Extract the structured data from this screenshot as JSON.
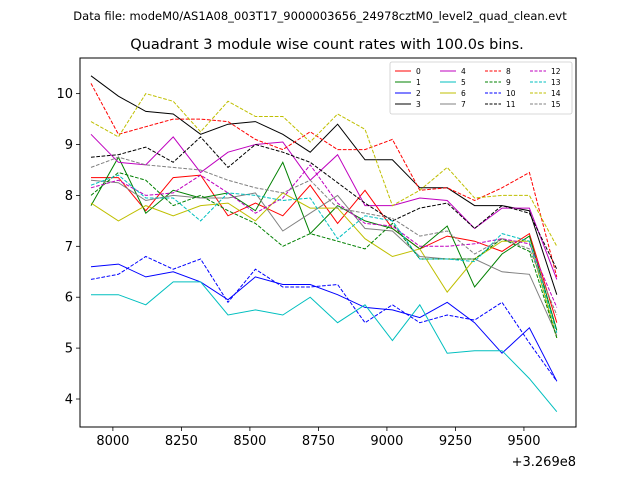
{
  "chart_data": {
    "type": "line",
    "suptitle": "Data file: modeM0/AS1A08_003T17_9000003656_24978cztM0_level2_quad_clean.evt",
    "title": "Quadrant 3 module wise count rates with 100.0s bins.",
    "xlabel": "",
    "ylabel": "",
    "x_offset_label": "+3.269e8",
    "xlim": [
      7880,
      9690
    ],
    "ylim": [
      3.45,
      10.7
    ],
    "xticks": [
      8000,
      8250,
      8500,
      8750,
      9000,
      9250,
      9500
    ],
    "yticks": [
      4,
      5,
      6,
      7,
      8,
      9,
      10
    ],
    "legend_position": "top-right",
    "legend_columns": 4,
    "x": [
      7920,
      8020,
      8120,
      8220,
      8320,
      8420,
      8520,
      8620,
      8720,
      8820,
      8920,
      9020,
      9120,
      9220,
      9320,
      9420,
      9520,
      9620
    ],
    "series": [
      {
        "name": "0",
        "color": "#ff0000",
        "dash": "solid",
        "values": [
          8.35,
          8.35,
          7.7,
          8.35,
          8.4,
          7.6,
          7.85,
          7.6,
          8.2,
          7.45,
          8.1,
          7.35,
          6.95,
          7.2,
          7.1,
          6.9,
          7.25,
          5.5
        ]
      },
      {
        "name": "1",
        "color": "#008000",
        "dash": "solid",
        "values": [
          7.8,
          8.75,
          7.65,
          8.1,
          7.95,
          8.05,
          7.7,
          8.65,
          7.25,
          7.8,
          7.5,
          7.35,
          6.95,
          7.4,
          6.2,
          6.85,
          7.2,
          5.35
        ]
      },
      {
        "name": "2",
        "color": "#0000ff",
        "dash": "solid",
        "values": [
          6.6,
          6.65,
          6.4,
          6.5,
          6.3,
          5.95,
          6.4,
          6.25,
          6.25,
          6.05,
          5.8,
          5.75,
          5.6,
          5.9,
          5.5,
          4.9,
          5.4,
          4.35
        ]
      },
      {
        "name": "3",
        "color": "#000000",
        "dash": "solid",
        "values": [
          10.35,
          9.95,
          9.65,
          9.6,
          9.2,
          9.4,
          9.45,
          9.2,
          8.85,
          9.4,
          8.7,
          8.7,
          8.15,
          8.15,
          7.8,
          7.8,
          7.7,
          6.05
        ]
      },
      {
        "name": "4",
        "color": "#bf00bf",
        "dash": "solid",
        "values": [
          9.2,
          8.65,
          8.6,
          9.15,
          8.45,
          8.85,
          9.0,
          9.05,
          8.3,
          8.8,
          7.8,
          7.8,
          7.95,
          7.9,
          7.35,
          7.75,
          7.75,
          6.35
        ]
      },
      {
        "name": "5",
        "color": "#00bfbf",
        "dash": "solid",
        "values": [
          6.05,
          6.05,
          5.85,
          6.3,
          6.3,
          5.65,
          5.75,
          5.65,
          6.0,
          5.5,
          5.85,
          5.15,
          5.85,
          4.9,
          4.95,
          4.95,
          4.4,
          3.75
        ]
      },
      {
        "name": "6",
        "color": "#bfbf00",
        "dash": "solid",
        "values": [
          7.85,
          7.5,
          7.8,
          7.6,
          7.8,
          7.85,
          7.5,
          8.05,
          7.75,
          7.75,
          7.15,
          6.8,
          6.95,
          6.1,
          6.75,
          7.1,
          7.1,
          5.2
        ]
      },
      {
        "name": "7",
        "color": "#808080",
        "dash": "solid",
        "values": [
          8.3,
          8.25,
          7.9,
          8.0,
          7.95,
          7.95,
          8.05,
          7.3,
          7.65,
          8.0,
          7.35,
          7.3,
          6.8,
          6.75,
          6.75,
          6.5,
          6.45,
          5.25
        ]
      },
      {
        "name": "8",
        "color": "#ff0000",
        "dash": "dashed",
        "values": [
          10.2,
          9.2,
          9.35,
          9.5,
          9.5,
          9.45,
          9.1,
          8.9,
          9.25,
          8.9,
          8.9,
          9.1,
          8.1,
          8.15,
          7.9,
          8.15,
          8.45,
          6.4
        ]
      },
      {
        "name": "9",
        "color": "#008000",
        "dash": "dashed",
        "values": [
          8.0,
          8.45,
          8.3,
          7.8,
          8.0,
          7.7,
          7.45,
          7.0,
          7.25,
          7.1,
          6.95,
          7.45,
          6.75,
          6.75,
          6.75,
          7.15,
          6.9,
          5.2
        ]
      },
      {
        "name": "10",
        "color": "#0000ff",
        "dash": "dashed",
        "values": [
          6.35,
          6.45,
          6.8,
          6.55,
          6.75,
          5.9,
          6.55,
          6.2,
          6.2,
          6.25,
          5.5,
          5.85,
          5.5,
          5.65,
          5.55,
          5.9,
          5.1,
          4.35
        ]
      },
      {
        "name": "11",
        "color": "#000000",
        "dash": "dashed",
        "values": [
          8.75,
          8.8,
          8.95,
          8.65,
          9.15,
          8.55,
          9.0,
          8.85,
          8.65,
          8.25,
          7.85,
          7.5,
          7.75,
          7.85,
          7.35,
          7.8,
          7.65,
          6.55
        ]
      },
      {
        "name": "12",
        "color": "#bf00bf",
        "dash": "dashed",
        "values": [
          8.15,
          8.3,
          8.0,
          8.05,
          8.4,
          8.05,
          7.65,
          7.95,
          8.6,
          7.85,
          7.45,
          7.4,
          7.0,
          7.0,
          7.05,
          7.15,
          7.05,
          5.8
        ]
      },
      {
        "name": "13",
        "color": "#00bfbf",
        "dash": "dashed",
        "values": [
          8.2,
          8.4,
          7.95,
          7.95,
          7.5,
          8.05,
          8.0,
          7.9,
          7.95,
          7.15,
          7.6,
          7.5,
          6.75,
          6.75,
          6.7,
          7.25,
          7.1,
          5.3
        ]
      },
      {
        "name": "14",
        "color": "#bfbf00",
        "dash": "dashed",
        "values": [
          9.45,
          9.15,
          10.0,
          9.85,
          9.25,
          9.85,
          9.55,
          9.55,
          9.05,
          9.6,
          9.3,
          7.8,
          8.1,
          8.55,
          7.95,
          8.0,
          8.0,
          7.0
        ]
      },
      {
        "name": "15",
        "color": "#808080",
        "dash": "dashed",
        "values": [
          8.55,
          8.75,
          8.6,
          8.55,
          8.5,
          8.3,
          8.15,
          8.05,
          8.3,
          7.75,
          7.65,
          7.55,
          7.2,
          7.3,
          6.85,
          7.15,
          6.95,
          5.65
        ]
      }
    ]
  }
}
